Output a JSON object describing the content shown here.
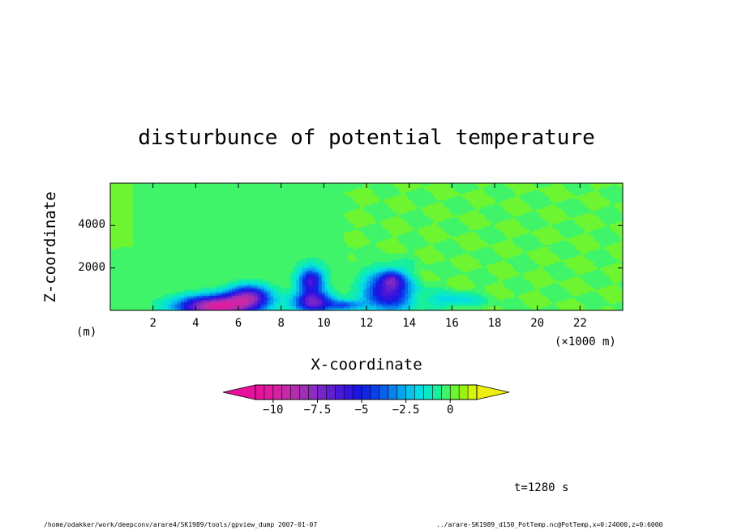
{
  "chart_data": {
    "type": "heatmap",
    "title": "disturbunce of potential temperature",
    "xlabel": "X-coordinate",
    "ylabel": "Z-coordinate",
    "x_unit": "(×1000 m)",
    "y_unit": "(m)",
    "xlim": [
      0,
      24000
    ],
    "ylim": [
      0,
      6000
    ],
    "x_ticks": [
      "2",
      "4",
      "6",
      "8",
      "10",
      "12",
      "14",
      "16",
      "18",
      "20",
      "22"
    ],
    "y_ticks": [
      "2000",
      "4000"
    ],
    "colorbar": {
      "range": [
        -11,
        1.5
      ],
      "ticks": [
        "−10",
        "−7.5",
        "−5",
        "−2.5",
        "0"
      ],
      "levels": [
        "#e8119b",
        "#e0199f",
        "#d422a4",
        "#c62aa9",
        "#b52daf",
        "#a12fb5",
        "#8c2cc0",
        "#7626c8",
        "#601fd0",
        "#4a18d8",
        "#3314df",
        "#1c16e4",
        "#0e27e6",
        "#0b41ea",
        "#0a60ee",
        "#0981ef",
        "#08a3ef",
        "#07c3ec",
        "#06dde0",
        "#0ae8c4",
        "#18ef9c",
        "#40f46a",
        "#6ef531",
        "#9cf20f",
        "#d7f50a"
      ],
      "under_color": "#e8119b",
      "over_color": "#eeee11"
    },
    "field_description": "cold pool of negative potential temperature disturbance near the surface between x=3000 and x=17000 m, minimum below -10 K near x=4500 m; wavy +/- structures aloft for x > 11000 m",
    "blobs": [
      {
        "x": 5000,
        "z": 200,
        "rx": 1800,
        "rz": 500,
        "value": -10.0
      },
      {
        "x": 6500,
        "z": 700,
        "rx": 1000,
        "rz": 500,
        "value": -6.5
      },
      {
        "x": 9500,
        "z": 400,
        "rx": 900,
        "rz": 500,
        "value": -7.0
      },
      {
        "x": 9400,
        "z": 1400,
        "rx": 600,
        "rz": 600,
        "value": -6.0
      },
      {
        "x": 13000,
        "z": 900,
        "rx": 1100,
        "rz": 900,
        "value": -6.5
      },
      {
        "x": 13200,
        "z": 1500,
        "rx": 500,
        "rz": 400,
        "value": -3.0
      },
      {
        "x": 16000,
        "z": 500,
        "rx": 1300,
        "rz": 350,
        "value": -2.0
      },
      {
        "x": 11000,
        "z": 250,
        "rx": 800,
        "rz": 250,
        "value": -3.5
      }
    ]
  },
  "annotations": {
    "time": "t=1280 s",
    "footer_left": "/home/odakker/work/deepconv/arare4/SK1989/tools/gpview_dump  2007-01-07",
    "footer_right": "../arare-SK1989_d150_PotTemp.nc@PotTemp,x=0:24000,z=0:6000"
  }
}
